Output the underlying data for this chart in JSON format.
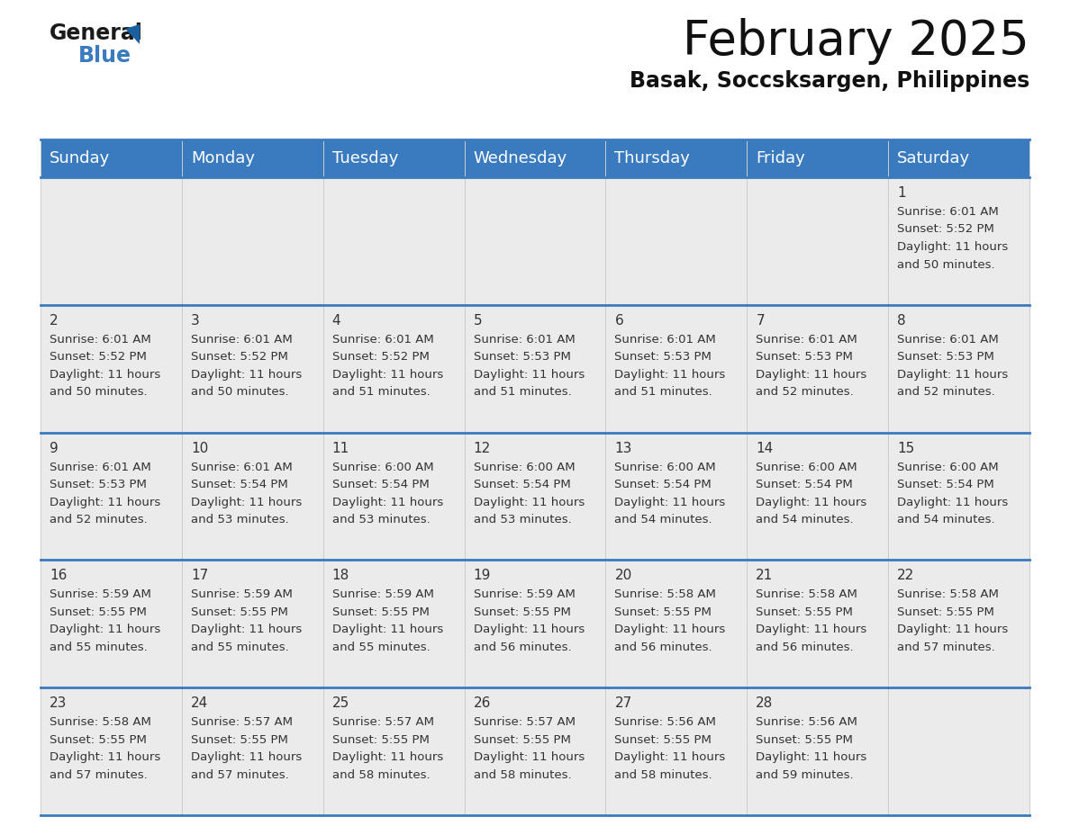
{
  "title": "February 2025",
  "subtitle": "Basak, Soccsksargen, Philippines",
  "header_color": "#3a7bbf",
  "header_text_color": "#ffffff",
  "cell_bg_color": "#ebebeb",
  "border_color": "#3a7bbf",
  "separator_color": "#3a7bbf",
  "day_headers": [
    "Sunday",
    "Monday",
    "Tuesday",
    "Wednesday",
    "Thursday",
    "Friday",
    "Saturday"
  ],
  "title_fontsize": 38,
  "subtitle_fontsize": 17,
  "header_fontsize": 13,
  "day_num_fontsize": 11,
  "cell_fontsize": 9.5,
  "days": [
    {
      "day": 1,
      "col": 6,
      "row": 0,
      "sunrise": "6:01 AM",
      "sunset": "5:52 PM",
      "daylight_hours": 11,
      "daylight_minutes": 50
    },
    {
      "day": 2,
      "col": 0,
      "row": 1,
      "sunrise": "6:01 AM",
      "sunset": "5:52 PM",
      "daylight_hours": 11,
      "daylight_minutes": 50
    },
    {
      "day": 3,
      "col": 1,
      "row": 1,
      "sunrise": "6:01 AM",
      "sunset": "5:52 PM",
      "daylight_hours": 11,
      "daylight_minutes": 50
    },
    {
      "day": 4,
      "col": 2,
      "row": 1,
      "sunrise": "6:01 AM",
      "sunset": "5:52 PM",
      "daylight_hours": 11,
      "daylight_minutes": 51
    },
    {
      "day": 5,
      "col": 3,
      "row": 1,
      "sunrise": "6:01 AM",
      "sunset": "5:53 PM",
      "daylight_hours": 11,
      "daylight_minutes": 51
    },
    {
      "day": 6,
      "col": 4,
      "row": 1,
      "sunrise": "6:01 AM",
      "sunset": "5:53 PM",
      "daylight_hours": 11,
      "daylight_minutes": 51
    },
    {
      "day": 7,
      "col": 5,
      "row": 1,
      "sunrise": "6:01 AM",
      "sunset": "5:53 PM",
      "daylight_hours": 11,
      "daylight_minutes": 52
    },
    {
      "day": 8,
      "col": 6,
      "row": 1,
      "sunrise": "6:01 AM",
      "sunset": "5:53 PM",
      "daylight_hours": 11,
      "daylight_minutes": 52
    },
    {
      "day": 9,
      "col": 0,
      "row": 2,
      "sunrise": "6:01 AM",
      "sunset": "5:53 PM",
      "daylight_hours": 11,
      "daylight_minutes": 52
    },
    {
      "day": 10,
      "col": 1,
      "row": 2,
      "sunrise": "6:01 AM",
      "sunset": "5:54 PM",
      "daylight_hours": 11,
      "daylight_minutes": 53
    },
    {
      "day": 11,
      "col": 2,
      "row": 2,
      "sunrise": "6:00 AM",
      "sunset": "5:54 PM",
      "daylight_hours": 11,
      "daylight_minutes": 53
    },
    {
      "day": 12,
      "col": 3,
      "row": 2,
      "sunrise": "6:00 AM",
      "sunset": "5:54 PM",
      "daylight_hours": 11,
      "daylight_minutes": 53
    },
    {
      "day": 13,
      "col": 4,
      "row": 2,
      "sunrise": "6:00 AM",
      "sunset": "5:54 PM",
      "daylight_hours": 11,
      "daylight_minutes": 54
    },
    {
      "day": 14,
      "col": 5,
      "row": 2,
      "sunrise": "6:00 AM",
      "sunset": "5:54 PM",
      "daylight_hours": 11,
      "daylight_minutes": 54
    },
    {
      "day": 15,
      "col": 6,
      "row": 2,
      "sunrise": "6:00 AM",
      "sunset": "5:54 PM",
      "daylight_hours": 11,
      "daylight_minutes": 54
    },
    {
      "day": 16,
      "col": 0,
      "row": 3,
      "sunrise": "5:59 AM",
      "sunset": "5:55 PM",
      "daylight_hours": 11,
      "daylight_minutes": 55
    },
    {
      "day": 17,
      "col": 1,
      "row": 3,
      "sunrise": "5:59 AM",
      "sunset": "5:55 PM",
      "daylight_hours": 11,
      "daylight_minutes": 55
    },
    {
      "day": 18,
      "col": 2,
      "row": 3,
      "sunrise": "5:59 AM",
      "sunset": "5:55 PM",
      "daylight_hours": 11,
      "daylight_minutes": 55
    },
    {
      "day": 19,
      "col": 3,
      "row": 3,
      "sunrise": "5:59 AM",
      "sunset": "5:55 PM",
      "daylight_hours": 11,
      "daylight_minutes": 56
    },
    {
      "day": 20,
      "col": 4,
      "row": 3,
      "sunrise": "5:58 AM",
      "sunset": "5:55 PM",
      "daylight_hours": 11,
      "daylight_minutes": 56
    },
    {
      "day": 21,
      "col": 5,
      "row": 3,
      "sunrise": "5:58 AM",
      "sunset": "5:55 PM",
      "daylight_hours": 11,
      "daylight_minutes": 56
    },
    {
      "day": 22,
      "col": 6,
      "row": 3,
      "sunrise": "5:58 AM",
      "sunset": "5:55 PM",
      "daylight_hours": 11,
      "daylight_minutes": 57
    },
    {
      "day": 23,
      "col": 0,
      "row": 4,
      "sunrise": "5:58 AM",
      "sunset": "5:55 PM",
      "daylight_hours": 11,
      "daylight_minutes": 57
    },
    {
      "day": 24,
      "col": 1,
      "row": 4,
      "sunrise": "5:57 AM",
      "sunset": "5:55 PM",
      "daylight_hours": 11,
      "daylight_minutes": 57
    },
    {
      "day": 25,
      "col": 2,
      "row": 4,
      "sunrise": "5:57 AM",
      "sunset": "5:55 PM",
      "daylight_hours": 11,
      "daylight_minutes": 58
    },
    {
      "day": 26,
      "col": 3,
      "row": 4,
      "sunrise": "5:57 AM",
      "sunset": "5:55 PM",
      "daylight_hours": 11,
      "daylight_minutes": 58
    },
    {
      "day": 27,
      "col": 4,
      "row": 4,
      "sunrise": "5:56 AM",
      "sunset": "5:55 PM",
      "daylight_hours": 11,
      "daylight_minutes": 58
    },
    {
      "day": 28,
      "col": 5,
      "row": 4,
      "sunrise": "5:56 AM",
      "sunset": "5:55 PM",
      "daylight_hours": 11,
      "daylight_minutes": 59
    }
  ]
}
